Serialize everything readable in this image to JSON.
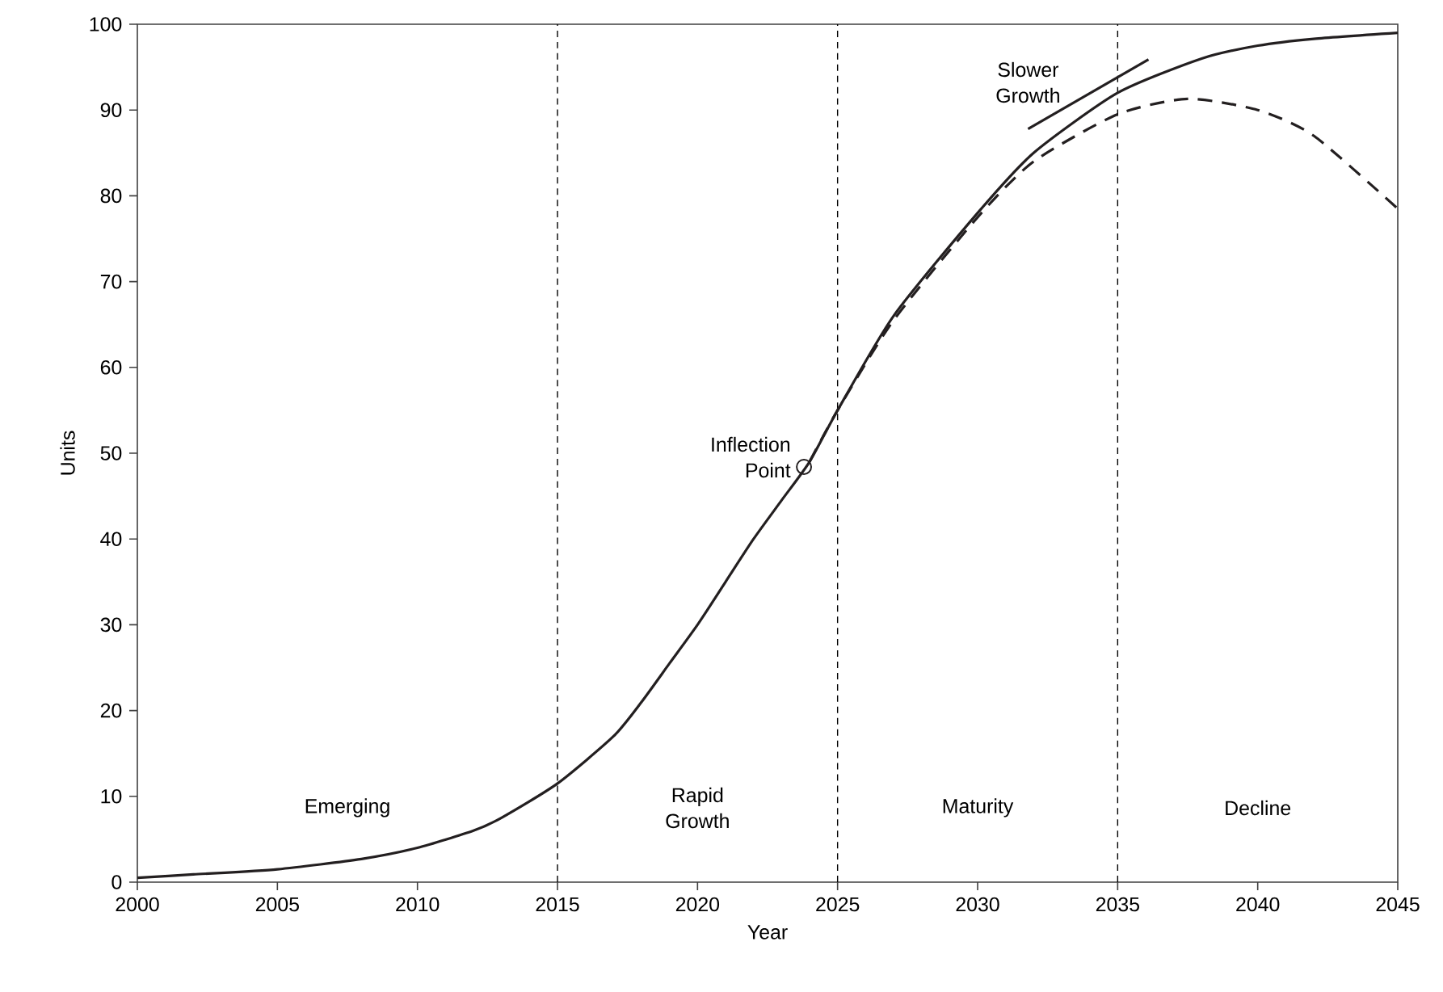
{
  "chart_data": {
    "type": "line",
    "xlabel": "Year",
    "ylabel": "Units",
    "xlim": [
      2000,
      2045
    ],
    "ylim": [
      0,
      100
    ],
    "xticks": [
      2000,
      2005,
      2010,
      2015,
      2020,
      2025,
      2030,
      2035,
      2040,
      2045
    ],
    "yticks": [
      0,
      10,
      20,
      30,
      40,
      50,
      60,
      70,
      80,
      90,
      100
    ],
    "grid": false,
    "series": [
      {
        "color": "#231f20",
        "line_style": "solid",
        "x": [
          2000,
          2002,
          2005,
          2008,
          2010,
          2012,
          2013,
          2015,
          2017,
          2018,
          2019,
          2020,
          2021,
          2022,
          2023,
          2024,
          2025,
          2027,
          2030,
          2032,
          2035,
          2038,
          2040,
          2042,
          2045
        ],
        "values": [
          0.5,
          0.9,
          1.5,
          2.7,
          4,
          6,
          7.5,
          11.5,
          17,
          21,
          25.5,
          30,
          35,
          40,
          44.5,
          49,
          55,
          66,
          78,
          85,
          92,
          96,
          97.5,
          98.3,
          99
        ]
      },
      {
        "color": "#231f20",
        "line_style": "dashed",
        "x": [
          2024,
          2025,
          2027,
          2030,
          2032,
          2035,
          2037.5,
          2040,
          2042,
          2045
        ],
        "values": [
          49,
          55,
          65.5,
          77.5,
          84,
          89.5,
          91.3,
          90,
          87,
          78.5
        ]
      },
      {
        "color": "#231f20",
        "line_style": "solid",
        "x": [
          2031.8,
          2036.1
        ],
        "values": [
          87.8,
          95.9
        ]
      },
      {
        "type": "scatter",
        "color": "#231f20",
        "marker": "circle",
        "x": [
          2023.8
        ],
        "values": [
          48.4
        ]
      }
    ],
    "ref_lines": [
      {
        "axis": "x",
        "value": 2015,
        "line_style": "dashed"
      },
      {
        "axis": "x",
        "value": 2025,
        "line_style": "dashed"
      },
      {
        "axis": "x",
        "value": 2035,
        "line_style": "dashed"
      }
    ],
    "annotations": [
      "Emerging",
      "Rapid\nGrowth",
      "Maturity",
      "Decline",
      {
        "text": "Inflection\nPoint",
        "x": 2023.8,
        "y": 48.4
      },
      {
        "text": "Slower\nGrowth",
        "x": 2031.8,
        "y": 87.8
      }
    ]
  }
}
